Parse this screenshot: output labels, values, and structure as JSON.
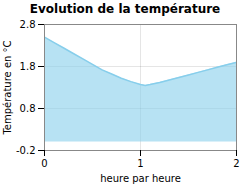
{
  "chart_data": {
    "type": "area",
    "title": "Evolution de la température",
    "x_label": "heure par heure",
    "y_label": "Température en °C",
    "x": [
      0,
      0.1,
      0.2,
      0.3,
      0.4,
      0.5,
      0.6,
      0.7,
      0.8,
      0.9,
      1.0,
      1.05,
      1.1,
      1.2,
      1.3,
      1.4,
      1.5,
      1.6,
      1.7,
      1.8,
      1.9,
      2.0
    ],
    "values": [
      2.5,
      2.37,
      2.24,
      2.11,
      1.98,
      1.85,
      1.72,
      1.62,
      1.52,
      1.44,
      1.37,
      1.35,
      1.37,
      1.42,
      1.48,
      1.54,
      1.6,
      1.66,
      1.72,
      1.78,
      1.84,
      1.9
    ],
    "color": "#87CEEB",
    "xlim": [
      0,
      2
    ],
    "xticks": [
      0,
      1,
      2
    ],
    "ylim": [
      -0.2,
      2.8
    ],
    "yticks": [
      -0.2,
      0.8,
      1.8,
      2.8
    ],
    "grid": true
  }
}
